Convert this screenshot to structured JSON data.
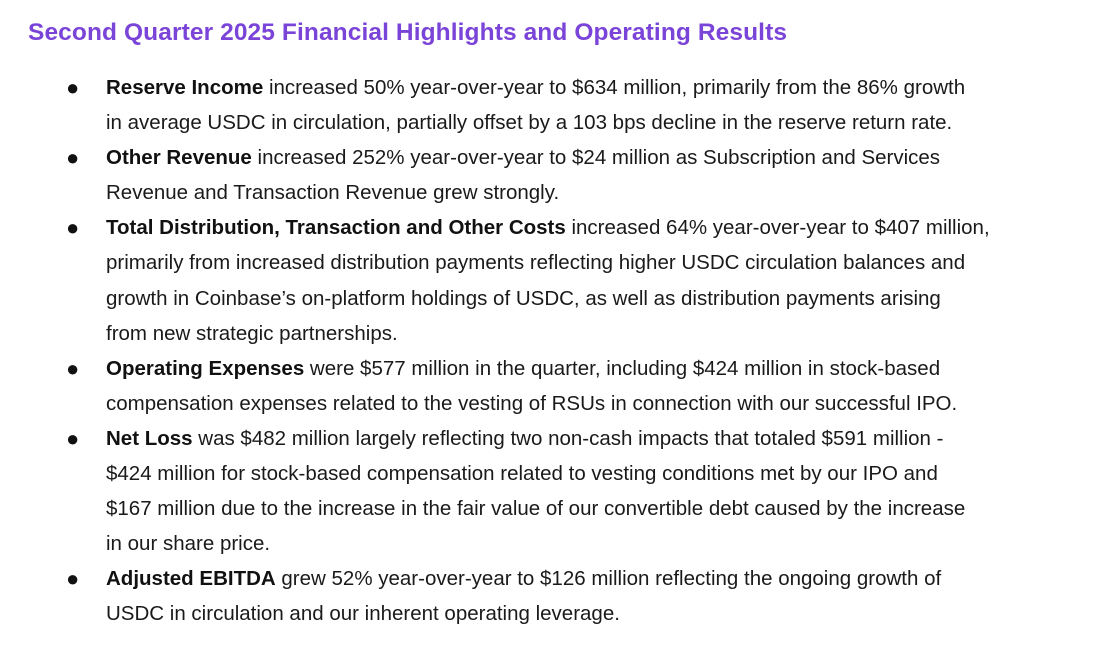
{
  "heading": "Second Quarter 2025 Financial Highlights and Operating Results",
  "bullet_icon": "●",
  "items": [
    {
      "lead": "Reserve Income",
      "lines": [
        " increased 50% year-over-year to $634 million, primarily from the 86% growth",
        "in average USDC in circulation, partially offset by a 103 bps decline in the reserve return rate."
      ]
    },
    {
      "lead": "Other Revenue",
      "lines": [
        " increased 252% year-over-year to $24 million as Subscription and Services",
        "Revenue and Transaction Revenue grew strongly."
      ]
    },
    {
      "lead": "Total Distribution, Transaction and Other Costs",
      "lines": [
        " increased 64% year-over-year to $407 million,",
        "primarily from increased distribution payments reflecting higher USDC circulation balances and",
        "growth in Coinbase’s on-platform holdings of USDC, as well as distribution payments arising",
        "from new strategic partnerships."
      ]
    },
    {
      "lead": "Operating Expenses",
      "lines": [
        " were $577 million in the quarter, including $424 million in stock-based",
        "compensation expenses related to the vesting of RSUs in connection with our successful IPO."
      ]
    },
    {
      "lead": "Net Loss",
      "lines": [
        " was $482 million largely reflecting two non-cash impacts that totaled $591 million -",
        "$424 million for stock-based compensation related to vesting conditions met by our IPO and",
        "$167 million due to the increase in the fair value of our convertible debt caused by the increase",
        "in our share price."
      ]
    },
    {
      "lead": "Adjusted EBITDA",
      "lines": [
        " grew 52% year-over-year to $126 million reflecting the ongoing growth of",
        "USDC in circulation and our inherent operating leverage."
      ]
    }
  ]
}
